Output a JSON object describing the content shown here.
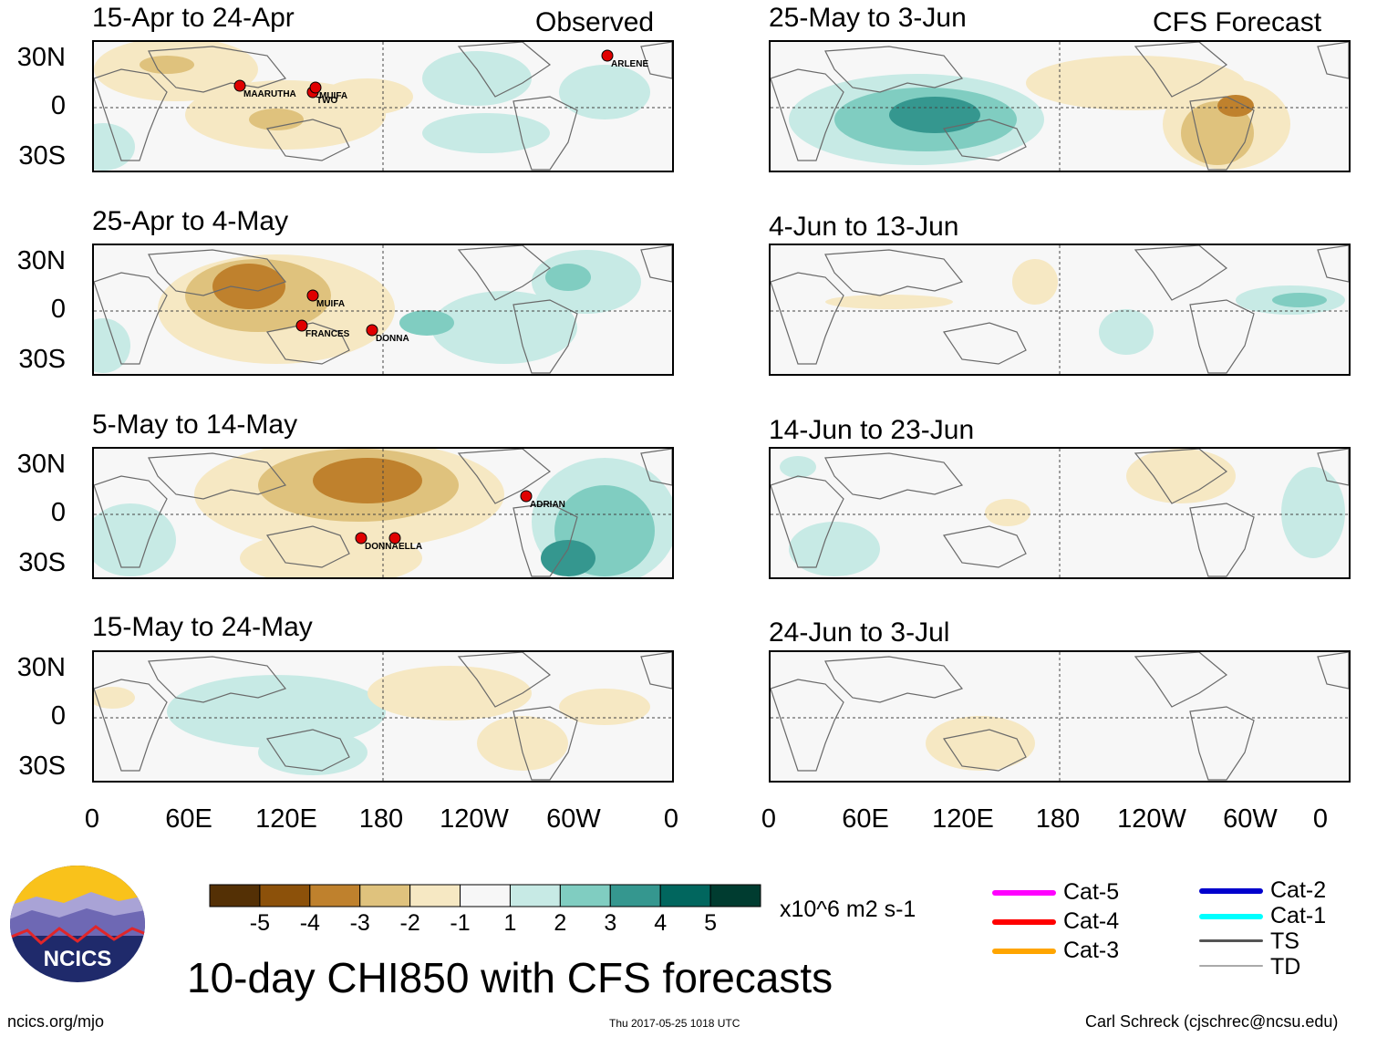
{
  "title": "10-day CHI850 with CFS forecasts",
  "column_headers": {
    "observed": "Observed",
    "forecast": "CFS Forecast"
  },
  "y_axis_labels": [
    "30N",
    "0",
    "30S"
  ],
  "x_axis_labels": [
    "0",
    "60E",
    "120E",
    "180",
    "120W",
    "60W",
    "0"
  ],
  "panels": [
    {
      "title": "15-Apr to 24-Apr",
      "storms": [
        "MAARUTHA",
        "TWO",
        "MUIFA",
        "ARLENE"
      ]
    },
    {
      "title": "25-Apr to 4-May",
      "storms": [
        "MUIFA",
        "FRANCES",
        "DONNA"
      ]
    },
    {
      "title": "5-May to 14-May",
      "storms": [
        "ADRIAN",
        "DONNA",
        "ELLA"
      ]
    },
    {
      "title": "15-May to 24-May",
      "storms": []
    },
    {
      "title": "25-May to 3-Jun",
      "storms": []
    },
    {
      "title": "4-Jun to 13-Jun",
      "storms": []
    },
    {
      "title": "14-Jun to 23-Jun",
      "storms": []
    },
    {
      "title": "24-Jun to 3-Jul",
      "storms": []
    }
  ],
  "colorbar": {
    "colors": [
      "#543005",
      "#8c510a",
      "#bf812d",
      "#dfc27d",
      "#f6e8c3",
      "#f7f7f7",
      "#c7eae5",
      "#80cdc1",
      "#35978f",
      "#01665e",
      "#003c30"
    ],
    "labels": [
      "-5",
      "-4",
      "-3",
      "-2",
      "-1",
      "1",
      "2",
      "3",
      "4",
      "5"
    ],
    "units": "x10^6 m2 s-1"
  },
  "legend": [
    {
      "label": "Cat-5",
      "color": "#ff00ff"
    },
    {
      "label": "Cat-4",
      "color": "#ff0000"
    },
    {
      "label": "Cat-3",
      "color": "#ffa500"
    },
    {
      "label": "Cat-2",
      "color": "#0000cd"
    },
    {
      "label": "Cat-1",
      "color": "#00ffff"
    },
    {
      "label": "TS",
      "color": "#555555"
    },
    {
      "label": "TD",
      "color": "#aaaaaa"
    }
  ],
  "logo_text": "NCICS",
  "footer": {
    "left": "ncics.org/mjo",
    "center": "Thu 2017-05-25 1018 UTC",
    "right": "Carl Schreck (cjschrec@ncsu.edu)"
  }
}
